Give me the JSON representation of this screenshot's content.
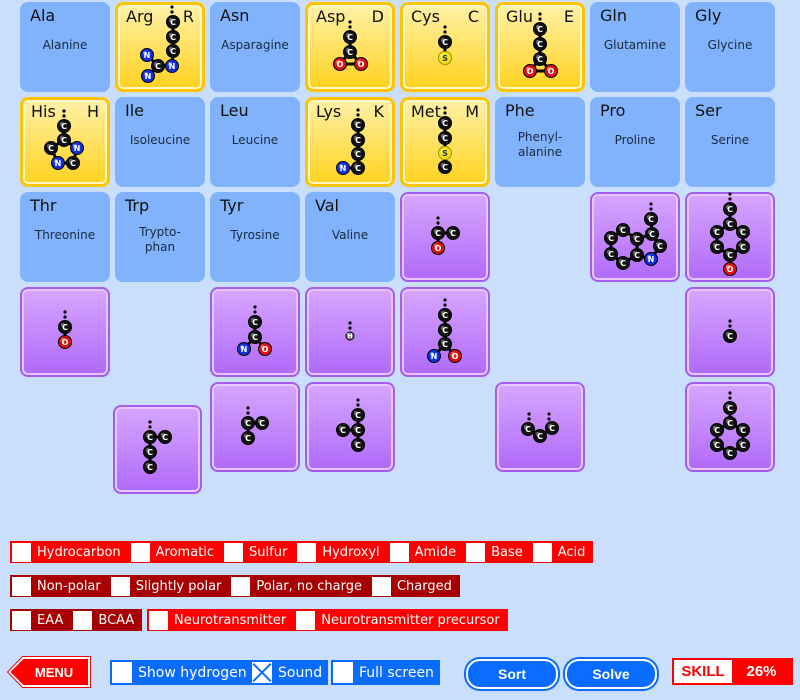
{
  "tiles": [
    {
      "abbr": "Ala",
      "name": "Alanine",
      "style": "blue",
      "col": 0,
      "row": 0
    },
    {
      "abbr": "Arg",
      "letter": "R",
      "style": "yellow",
      "col": 1,
      "row": 0,
      "molecule": "arg",
      "atoms": [
        "C",
        "C",
        "C",
        "N",
        "C",
        "N",
        "N"
      ]
    },
    {
      "abbr": "Asn",
      "name": "Asparagine",
      "style": "blue",
      "col": 2,
      "row": 0
    },
    {
      "abbr": "Asp",
      "letter": "D",
      "style": "yellow",
      "col": 3,
      "row": 0,
      "molecule": "asp",
      "atoms": [
        "C",
        "C",
        "O",
        "O"
      ]
    },
    {
      "abbr": "Cys",
      "letter": "C",
      "style": "yellow",
      "col": 4,
      "row": 0,
      "molecule": "cys",
      "atoms": [
        "C",
        "S"
      ]
    },
    {
      "abbr": "Glu",
      "letter": "E",
      "style": "yellow",
      "col": 5,
      "row": 0,
      "molecule": "glu",
      "atoms": [
        "C",
        "C",
        "C",
        "O",
        "O"
      ]
    },
    {
      "abbr": "Gln",
      "name": "Glutamine",
      "style": "blue",
      "col": 6,
      "row": 0
    },
    {
      "abbr": "Gly",
      "name": "Glycine",
      "style": "blue",
      "col": 7,
      "row": 0
    },
    {
      "abbr": "His",
      "letter": "H",
      "style": "yellow",
      "col": 0,
      "row": 1,
      "molecule": "his",
      "atoms": [
        "C",
        "C",
        "C",
        "N",
        "N",
        "C"
      ]
    },
    {
      "abbr": "Ile",
      "name": "Isoleucine",
      "style": "blue",
      "col": 1,
      "row": 1
    },
    {
      "abbr": "Leu",
      "name": "Leucine",
      "style": "blue",
      "col": 2,
      "row": 1
    },
    {
      "abbr": "Lys",
      "letter": "K",
      "style": "yellow",
      "col": 3,
      "row": 1,
      "molecule": "lys",
      "atoms": [
        "C",
        "C",
        "C",
        "C",
        "N"
      ]
    },
    {
      "abbr": "Met",
      "letter": "M",
      "style": "yellow",
      "col": 4,
      "row": 1,
      "molecule": "met",
      "atoms": [
        "C",
        "C",
        "S",
        "C"
      ]
    },
    {
      "abbr": "Phe",
      "name": "Phenyl-\nalanine",
      "style": "blue",
      "col": 5,
      "row": 1
    },
    {
      "abbr": "Pro",
      "name": "Proline",
      "style": "blue",
      "col": 6,
      "row": 1
    },
    {
      "abbr": "Ser",
      "name": "Serine",
      "style": "blue",
      "col": 7,
      "row": 1
    },
    {
      "abbr": "Thr",
      "name": "Threonine",
      "style": "blue",
      "col": 0,
      "row": 2
    },
    {
      "abbr": "Trp",
      "name": "Trypto-\nphan",
      "style": "blue",
      "col": 1,
      "row": 2
    },
    {
      "abbr": "Tyr",
      "name": "Tyrosine",
      "style": "blue",
      "col": 2,
      "row": 2
    },
    {
      "abbr": "Val",
      "name": "Valine",
      "style": "blue",
      "col": 3,
      "row": 2
    }
  ],
  "pieces": [
    {
      "molecule": "p_thr",
      "atoms": [
        "C",
        "C",
        "O"
      ]
    },
    {
      "molecule": "p_trp",
      "atoms": [
        "C",
        "C",
        "C",
        "N",
        "C",
        "C",
        "C",
        "C",
        "C",
        "C"
      ]
    },
    {
      "molecule": "p_tyr",
      "atoms": [
        "C",
        "C",
        "C",
        "C",
        "C",
        "C",
        "C",
        "O"
      ]
    },
    {
      "molecule": "p_ser",
      "atoms": [
        "C",
        "O"
      ]
    },
    {
      "molecule": "p_asn",
      "atoms": [
        "C",
        "C",
        "N",
        "O"
      ]
    },
    {
      "molecule": "p_gly",
      "atoms": [
        "H"
      ]
    },
    {
      "molecule": "p_gln",
      "atoms": [
        "C",
        "C",
        "C",
        "N",
        "O"
      ]
    },
    {
      "molecule": "p_ala",
      "atoms": [
        "C"
      ]
    },
    {
      "molecule": "p_ile",
      "atoms": [
        "C",
        "C",
        "C",
        "C"
      ]
    },
    {
      "molecule": "p_val",
      "atoms": [
        "C",
        "C",
        "C"
      ]
    },
    {
      "molecule": "p_leu",
      "atoms": [
        "C",
        "C",
        "C",
        "C"
      ]
    },
    {
      "molecule": "p_pro",
      "atoms": [
        "C",
        "C",
        "C"
      ]
    },
    {
      "molecule": "p_phe",
      "atoms": [
        "C",
        "C",
        "C",
        "C",
        "C",
        "C",
        "C"
      ]
    }
  ],
  "filters": {
    "row1": [
      "Hydrocarbon",
      "Aromatic",
      "Sulfur",
      "Hydroxyl",
      "Amide",
      "Base",
      "Acid"
    ],
    "row2": [
      "Non-polar",
      "Slightly polar",
      "Polar, no charge",
      "Charged"
    ],
    "row3a": [
      "EAA",
      "BCAA"
    ],
    "row3b": [
      "Neurotransmitter",
      "Neurotransmitter precursor"
    ]
  },
  "bottom": {
    "menu": "MENU",
    "show_hydrogen": {
      "label": "Show hydrogen",
      "checked": false
    },
    "sound": {
      "label": "Sound",
      "checked": true
    },
    "full_screen": {
      "label": "Full screen",
      "checked": false
    },
    "sort": "Sort",
    "solve": "Solve",
    "skill_label": "SKILL",
    "skill_value": "26%"
  },
  "colors": {
    "carbon": "#111111",
    "nitrogen": "#1030e0",
    "oxygen": "#e01010",
    "sulfur": "#f0e020",
    "hydrogen": "#888888",
    "accent_red": "#ff0000",
    "accent_blue": "#0a6cff"
  }
}
